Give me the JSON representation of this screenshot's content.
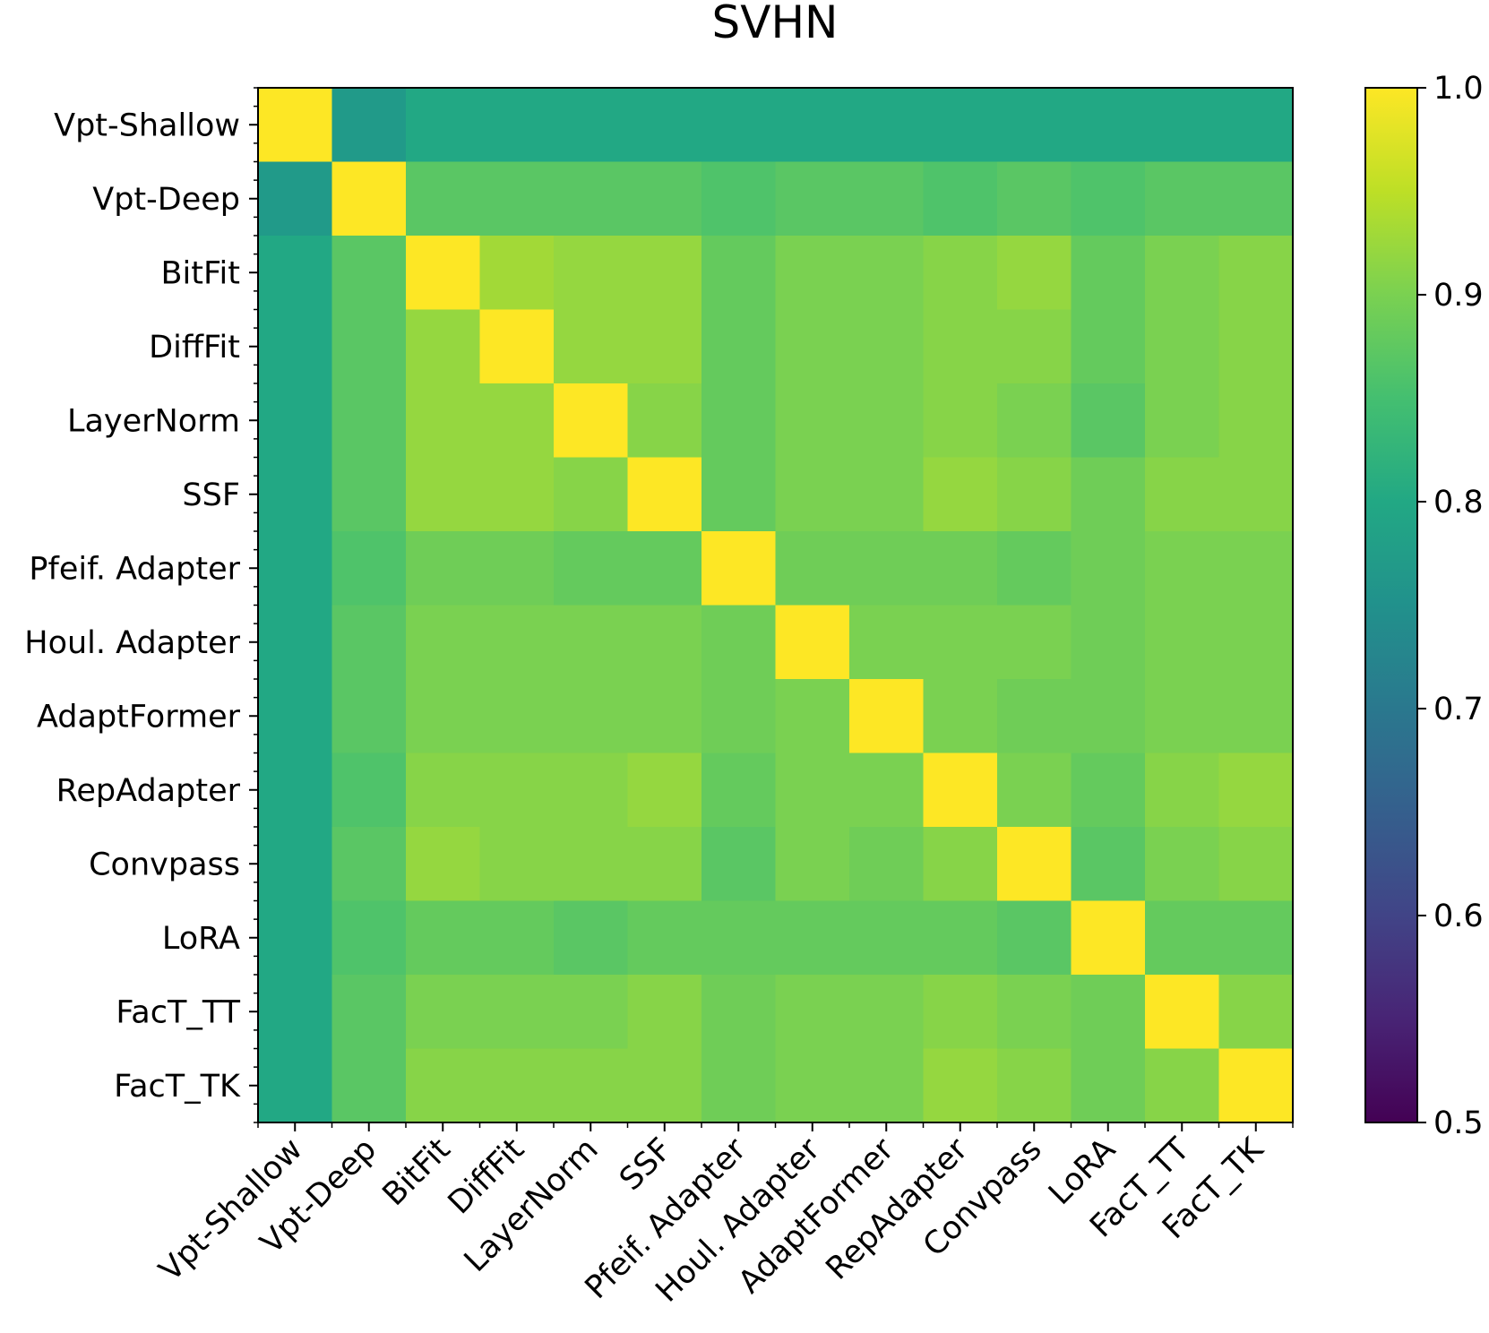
{
  "chart_data": {
    "type": "heatmap",
    "title": "SVHN",
    "xlabel": "",
    "ylabel": "",
    "labels": [
      "Vpt-Shallow",
      "Vpt-Deep",
      "BitFit",
      "DiffFit",
      "LayerNorm",
      "SSF",
      "Pfeif. Adapter",
      "Houl. Adapter",
      "AdaptFormer",
      "RepAdapter",
      "Convpass",
      "LoRA",
      "FacT_TT",
      "FacT_TK"
    ],
    "matrix": [
      [
        1.0,
        0.77,
        0.8,
        0.8,
        0.8,
        0.8,
        0.8,
        0.8,
        0.8,
        0.8,
        0.8,
        0.8,
        0.8,
        0.8
      ],
      [
        0.77,
        1.0,
        0.87,
        0.87,
        0.87,
        0.87,
        0.86,
        0.87,
        0.87,
        0.86,
        0.87,
        0.86,
        0.87,
        0.87
      ],
      [
        0.8,
        0.87,
        1.0,
        0.93,
        0.92,
        0.92,
        0.88,
        0.9,
        0.9,
        0.91,
        0.92,
        0.88,
        0.9,
        0.91
      ],
      [
        0.8,
        0.87,
        0.92,
        1.0,
        0.92,
        0.92,
        0.88,
        0.9,
        0.9,
        0.91,
        0.91,
        0.88,
        0.9,
        0.91
      ],
      [
        0.8,
        0.87,
        0.92,
        0.92,
        1.0,
        0.91,
        0.88,
        0.9,
        0.9,
        0.91,
        0.9,
        0.87,
        0.9,
        0.91
      ],
      [
        0.8,
        0.87,
        0.92,
        0.92,
        0.91,
        1.0,
        0.88,
        0.9,
        0.9,
        0.92,
        0.91,
        0.89,
        0.91,
        0.91
      ],
      [
        0.8,
        0.86,
        0.89,
        0.89,
        0.88,
        0.88,
        1.0,
        0.89,
        0.89,
        0.89,
        0.88,
        0.89,
        0.9,
        0.9
      ],
      [
        0.8,
        0.87,
        0.9,
        0.9,
        0.9,
        0.9,
        0.89,
        1.0,
        0.9,
        0.9,
        0.9,
        0.89,
        0.9,
        0.9
      ],
      [
        0.8,
        0.87,
        0.9,
        0.9,
        0.9,
        0.9,
        0.89,
        0.9,
        1.0,
        0.9,
        0.89,
        0.89,
        0.9,
        0.9
      ],
      [
        0.8,
        0.86,
        0.91,
        0.91,
        0.91,
        0.92,
        0.88,
        0.9,
        0.9,
        1.0,
        0.9,
        0.88,
        0.91,
        0.92
      ],
      [
        0.8,
        0.87,
        0.92,
        0.91,
        0.91,
        0.91,
        0.87,
        0.9,
        0.89,
        0.91,
        1.0,
        0.87,
        0.9,
        0.91
      ],
      [
        0.8,
        0.86,
        0.88,
        0.88,
        0.87,
        0.88,
        0.88,
        0.88,
        0.88,
        0.88,
        0.87,
        1.0,
        0.88,
        0.88
      ],
      [
        0.8,
        0.87,
        0.9,
        0.9,
        0.9,
        0.91,
        0.89,
        0.9,
        0.9,
        0.91,
        0.9,
        0.89,
        1.0,
        0.91
      ],
      [
        0.8,
        0.87,
        0.91,
        0.91,
        0.91,
        0.91,
        0.89,
        0.9,
        0.9,
        0.92,
        0.91,
        0.89,
        0.91,
        1.0
      ]
    ],
    "colorscale": "viridis",
    "vmin": 0.5,
    "vmax": 1.0,
    "colorbar_ticks": [
      0.5,
      0.6,
      0.7,
      0.8,
      0.9,
      1.0
    ],
    "colorbar_tick_labels": [
      "0.5",
      "0.6",
      "0.7",
      "0.8",
      "0.9",
      "1.0"
    ]
  }
}
